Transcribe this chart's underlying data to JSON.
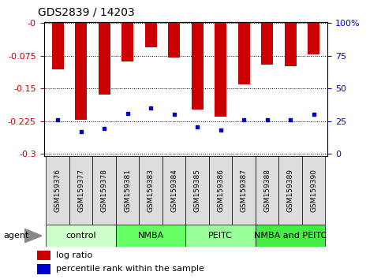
{
  "title": "GDS2839 / 14203",
  "samples": [
    "GSM159376",
    "GSM159377",
    "GSM159378",
    "GSM159381",
    "GSM159383",
    "GSM159384",
    "GSM159385",
    "GSM159386",
    "GSM159387",
    "GSM159388",
    "GSM159389",
    "GSM159390"
  ],
  "log_ratios": [
    -0.105,
    -0.222,
    -0.163,
    -0.088,
    -0.055,
    -0.078,
    -0.198,
    -0.215,
    -0.14,
    -0.095,
    -0.098,
    -0.072
  ],
  "percentile_ranks": [
    -0.221,
    -0.248,
    -0.241,
    -0.207,
    -0.195,
    -0.208,
    -0.237,
    -0.245,
    -0.222,
    -0.222,
    -0.222,
    -0.208
  ],
  "groups": [
    {
      "label": "control",
      "start": 0,
      "end": 3,
      "color": "#ccffcc"
    },
    {
      "label": "NMBA",
      "start": 3,
      "end": 6,
      "color": "#66ff66"
    },
    {
      "label": "PEITC",
      "start": 6,
      "end": 9,
      "color": "#99ff99"
    },
    {
      "label": "NMBA and PEITC",
      "start": 9,
      "end": 12,
      "color": "#44ee44"
    }
  ],
  "ylim": [
    -0.305,
    0.002
  ],
  "yticks": [
    0,
    -0.075,
    -0.15,
    -0.225,
    -0.3
  ],
  "ytick_labels": [
    "-0",
    "-0.075",
    "-0.15",
    "-0.225",
    "-0.3"
  ],
  "right_tick_positions": [
    0,
    -0.075,
    -0.15,
    -0.225,
    -0.3
  ],
  "right_tick_labels": [
    "100%",
    "75",
    "50",
    "25",
    "0"
  ],
  "bar_color": "#cc0000",
  "dot_color": "#0000cc",
  "tick_label_color_left": "#cc0000",
  "tick_label_color_right": "#0000cc",
  "legend_items": [
    "log ratio",
    "percentile rank within the sample"
  ],
  "legend_colors": [
    "#cc0000",
    "#0000cc"
  ],
  "bar_width": 0.5,
  "agent_label": "agent"
}
